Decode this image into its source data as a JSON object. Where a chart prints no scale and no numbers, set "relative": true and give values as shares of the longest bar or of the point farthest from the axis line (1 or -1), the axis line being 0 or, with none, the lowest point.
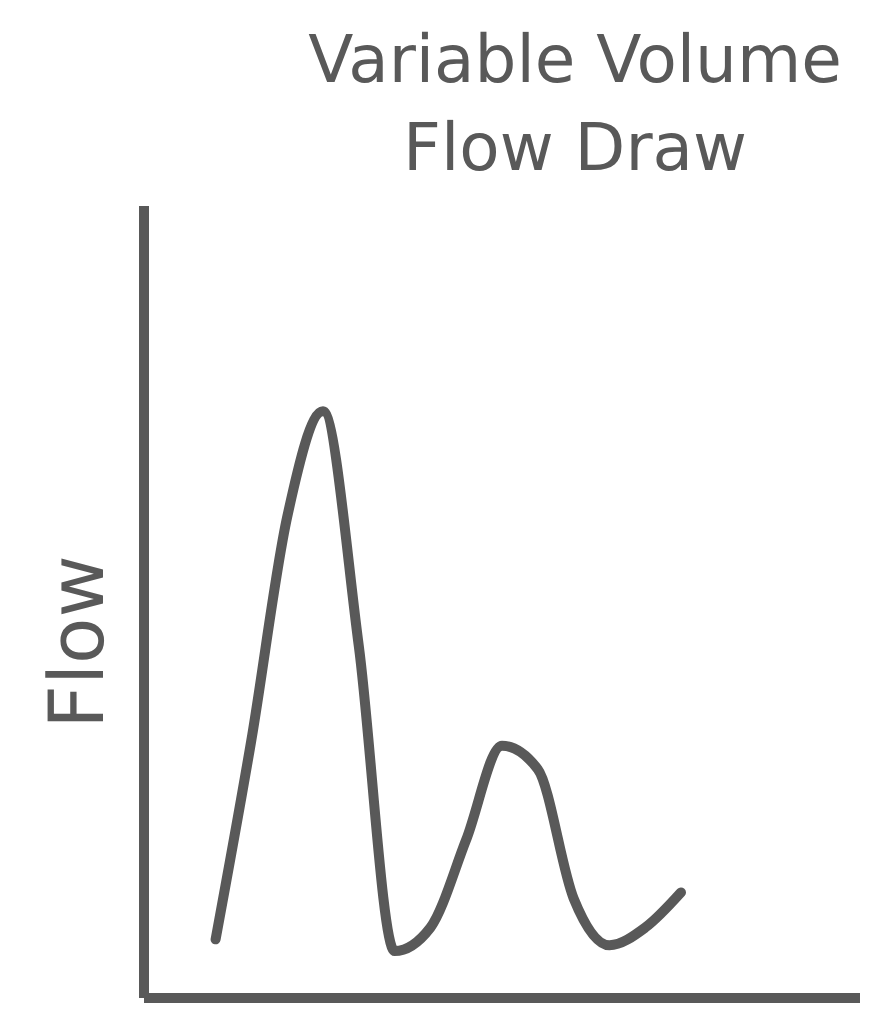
{
  "chart_data": {
    "type": "line",
    "title": "Variable Volume Flow Draw",
    "ylabel": "Flow",
    "relative": true,
    "categories": [
      null,
      null,
      null,
      null,
      null,
      null,
      null,
      null,
      null,
      null,
      null,
      null,
      null,
      null,
      null,
      null,
      null,
      null,
      null,
      null,
      null
    ],
    "series": [
      {
        "color": "#595959",
        "values": [
          null,
          null,
          0.1,
          0.44,
          0.82,
          1.0,
          0.6,
          0.08,
          0.12,
          0.27,
          0.43,
          0.39,
          0.17,
          0.09,
          0.12,
          0.18,
          null,
          null,
          null,
          null,
          null
        ]
      }
    ],
    "grid": false,
    "legend": false,
    "marker": "none",
    "line_style": "solid"
  }
}
